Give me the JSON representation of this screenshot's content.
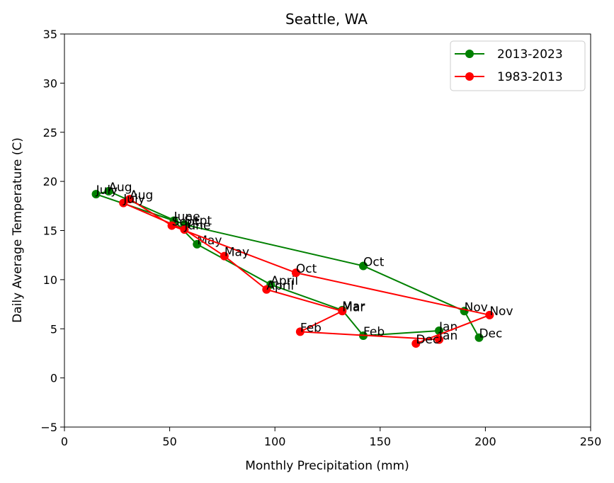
{
  "chart_data": {
    "type": "line",
    "title": "Seattle, WA",
    "xlabel": "Monthly Precipitation (mm)",
    "ylabel": "Daily Average Temperature (C)",
    "xlim": [
      0,
      250
    ],
    "ylim": [
      -5,
      35
    ],
    "xticks": [
      0,
      50,
      100,
      150,
      200,
      250
    ],
    "yticks": [
      -5,
      0,
      5,
      10,
      15,
      20,
      25,
      30,
      35
    ],
    "grid": false,
    "legend_position": "top-right",
    "series": [
      {
        "name": "2013-2023",
        "color": "#008000",
        "points": [
          {
            "label": "Jan",
            "x": 178,
            "y": 4.8
          },
          {
            "label": "Feb",
            "x": 142,
            "y": 4.3
          },
          {
            "label": "Mar",
            "x": 132,
            "y": 6.9
          },
          {
            "label": "April",
            "x": 98,
            "y": 9.5
          },
          {
            "label": "May",
            "x": 63,
            "y": 13.6
          },
          {
            "label": "June",
            "x": 52,
            "y": 16.0
          },
          {
            "label": "July",
            "x": 15,
            "y": 18.7
          },
          {
            "label": "Aug",
            "x": 21,
            "y": 19.0
          },
          {
            "label": "Sept",
            "x": 57,
            "y": 15.6
          },
          {
            "label": "Oct",
            "x": 142,
            "y": 11.4
          },
          {
            "label": "Nov",
            "x": 190,
            "y": 6.8
          },
          {
            "label": "Dec",
            "x": 197,
            "y": 4.1
          }
        ]
      },
      {
        "name": "1983-2013",
        "color": "#ff0000",
        "points": [
          {
            "label": "Jan",
            "x": 178,
            "y": 3.9
          },
          {
            "label": "Feb",
            "x": 112,
            "y": 4.7
          },
          {
            "label": "Mar",
            "x": 132,
            "y": 6.8
          },
          {
            "label": "April",
            "x": 96,
            "y": 9.0
          },
          {
            "label": "May",
            "x": 76,
            "y": 12.4
          },
          {
            "label": "June",
            "x": 57,
            "y": 15.1
          },
          {
            "label": "July",
            "x": 28,
            "y": 17.8
          },
          {
            "label": "Aug",
            "x": 31,
            "y": 18.2
          },
          {
            "label": "Sept",
            "x": 51,
            "y": 15.5
          },
          {
            "label": "Oct",
            "x": 110,
            "y": 10.7
          },
          {
            "label": "Nov",
            "x": 202,
            "y": 6.4
          },
          {
            "label": "Dec",
            "x": 167,
            "y": 3.5
          }
        ]
      }
    ]
  }
}
